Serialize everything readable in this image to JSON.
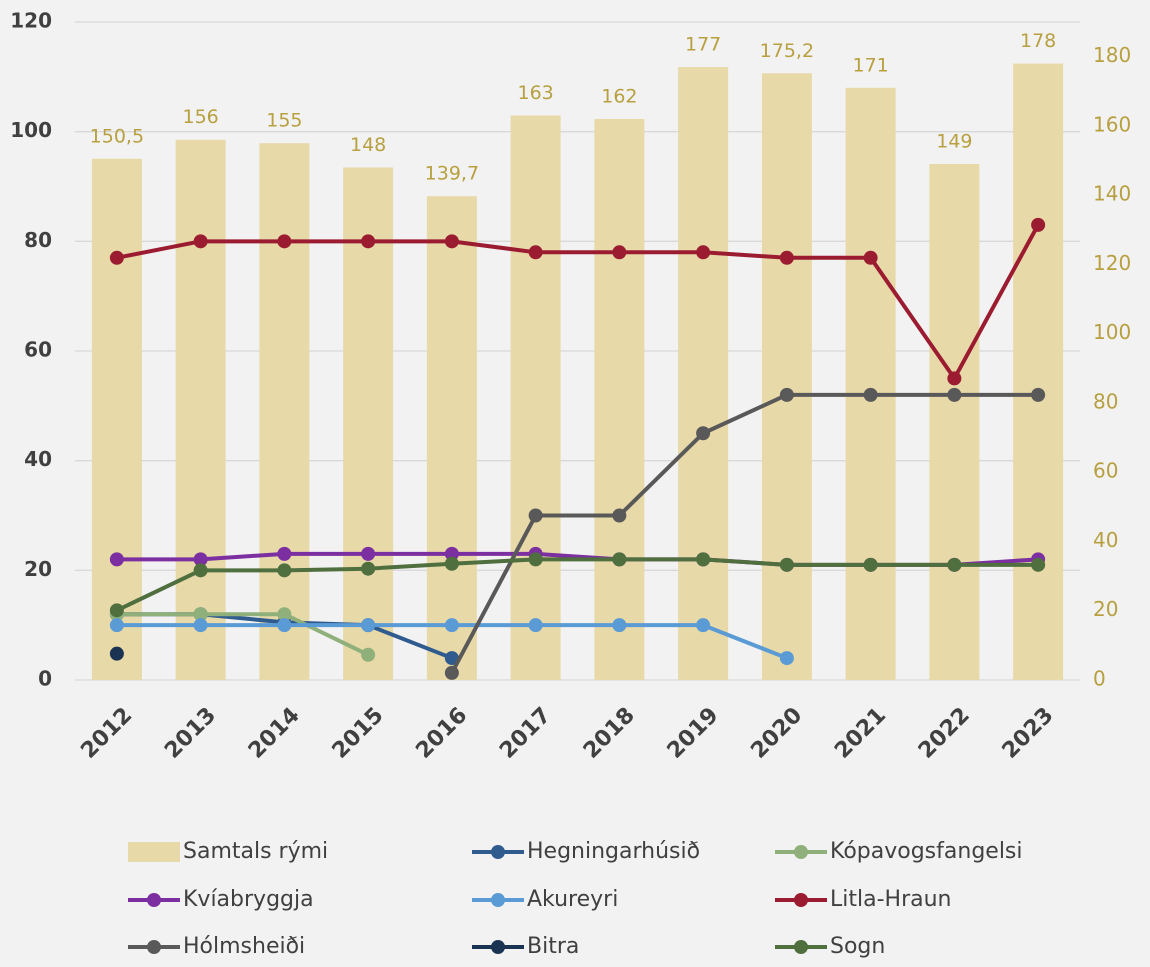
{
  "chart_data": {
    "type": "combo",
    "categories": [
      "2012",
      "2013",
      "2014",
      "2015",
      "2016",
      "2017",
      "2018",
      "2019",
      "2020",
      "2021",
      "2022",
      "2023"
    ],
    "series": [
      {
        "name": "Samtals rými",
        "type": "bar",
        "axis": "y2",
        "color": "#e8d9a8",
        "values": [
          150.5,
          156,
          155,
          148,
          139.7,
          163,
          162,
          177,
          175.2,
          171,
          149,
          178
        ],
        "value_labels": [
          "150,5",
          "156",
          "155",
          "148",
          "139,7",
          "163",
          "162",
          "177",
          "175,2",
          "171",
          "149",
          "178"
        ]
      },
      {
        "name": "Hegningarhúsið",
        "type": "line",
        "color": "#2f5b8f",
        "values": [
          12,
          12,
          10.5,
          10,
          4,
          null,
          null,
          null,
          null,
          null,
          null,
          null
        ]
      },
      {
        "name": "Kópavogsfangelsi",
        "type": "line",
        "color": "#8fb07a",
        "values": [
          12,
          12,
          12,
          4.6,
          null,
          null,
          null,
          null,
          null,
          null,
          null,
          null
        ]
      },
      {
        "name": "Kvíabryggja",
        "type": "line",
        "color": "#7b2fa0",
        "values": [
          22,
          22,
          23,
          23,
          23,
          23,
          22,
          22,
          21,
          21,
          21,
          22
        ]
      },
      {
        "name": "Akureyri",
        "type": "line",
        "color": "#5b9bd5",
        "values": [
          10,
          10,
          10,
          10,
          10,
          10,
          10,
          10,
          4,
          null,
          null,
          null
        ]
      },
      {
        "name": "Litla-Hraun",
        "type": "line",
        "color": "#9b1c31",
        "values": [
          77,
          80,
          80,
          80,
          80,
          78,
          78,
          78,
          77,
          77,
          55,
          83
        ]
      },
      {
        "name": "Hólmsheiði",
        "type": "line",
        "color": "#595959",
        "values": [
          null,
          null,
          null,
          null,
          1.3,
          30,
          30,
          45,
          52,
          52,
          52,
          52
        ]
      },
      {
        "name": "Bitra",
        "type": "line",
        "color": "#1a3352",
        "values": [
          4.8,
          null,
          null,
          null,
          null,
          null,
          null,
          null,
          null,
          null,
          null,
          null
        ]
      },
      {
        "name": "Sogn",
        "type": "line",
        "color": "#4f6f3f",
        "values": [
          12.7,
          20,
          20,
          20.3,
          21.2,
          22,
          22,
          22,
          21,
          21,
          21,
          21
        ]
      }
    ],
    "ylim": [
      0,
      120
    ],
    "yticks": [
      0,
      20,
      40,
      60,
      80,
      100,
      120
    ],
    "y2lim": [
      0,
      190
    ],
    "y2ticks": [
      0,
      20,
      40,
      60,
      80,
      100,
      120,
      140,
      160,
      180
    ],
    "grid": true,
    "legend": "bottom"
  }
}
